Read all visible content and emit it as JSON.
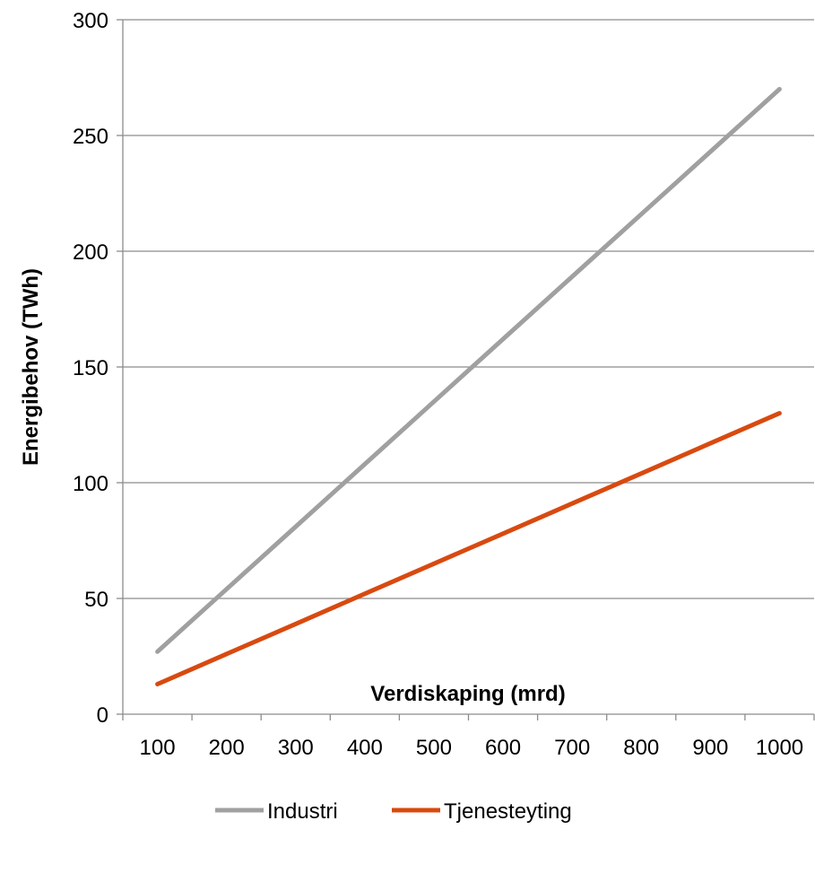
{
  "chart_data": {
    "type": "line",
    "xlabel": "Verdiskaping (mrd)",
    "ylabel": "Energibehov (TWh)",
    "categories": [
      "100",
      "200",
      "300",
      "400",
      "500",
      "600",
      "700",
      "800",
      "900",
      "1000"
    ],
    "ylim": [
      0,
      300
    ],
    "y_ticks": [
      "0",
      "50",
      "100",
      "150",
      "200",
      "250",
      "300"
    ],
    "grid": true,
    "legend_position": "bottom",
    "series": [
      {
        "name": "Industri",
        "color": "#A0A0A0",
        "values": [
          27,
          54,
          81,
          108,
          135,
          162,
          189,
          216,
          243,
          270
        ]
      },
      {
        "name": "Tjenesteyting",
        "color": "#D84A10",
        "values": [
          13,
          26,
          39,
          52,
          65,
          78,
          91,
          104,
          117,
          130
        ]
      }
    ]
  }
}
